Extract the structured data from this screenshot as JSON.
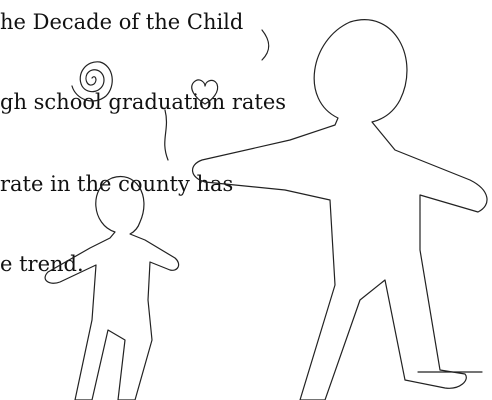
{
  "text_lines": [
    "he Decade of the Child",
    "gh school graduation rates",
    "rate in the county has",
    "e trend."
  ]
}
